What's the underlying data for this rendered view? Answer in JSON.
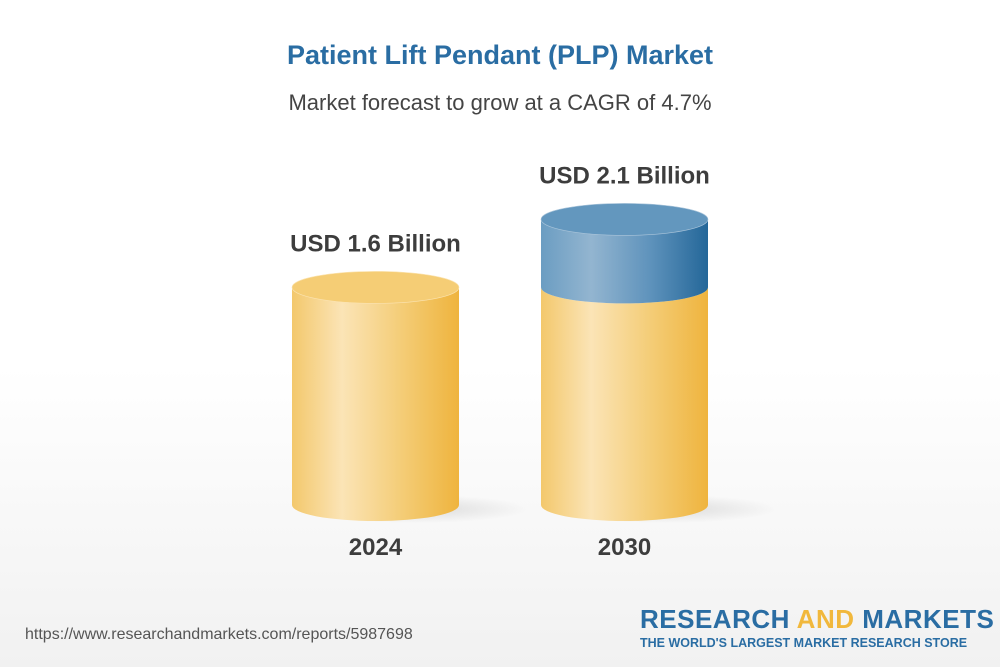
{
  "header": {
    "title": "Patient Lift Pendant (PLP) Market",
    "subtitle": "Market forecast to grow at a CAGR of 4.7%"
  },
  "chart_data": {
    "type": "bar",
    "style": "3d-cylinder",
    "title": "Patient Lift Pendant (PLP) Market",
    "subtitle": "Market forecast to grow at a CAGR of 4.7%",
    "categories": [
      "2024",
      "2030"
    ],
    "values": [
      1.6,
      2.1
    ],
    "unit": "USD Billion",
    "data_labels": [
      "USD 1.6 Billion",
      "USD 2.1 Billion"
    ],
    "cagr_percent": 4.7,
    "grid": false,
    "colors": {
      "base": "#f2c05a",
      "growth": "#2a6da3"
    }
  },
  "footer": {
    "url": "https://www.researchandmarkets.com/reports/5987698",
    "logo": {
      "word1": "RESEARCH ",
      "word2": "AND",
      "word3": " MARKETS",
      "tagline": "THE WORLD'S LARGEST MARKET RESEARCH STORE"
    }
  }
}
